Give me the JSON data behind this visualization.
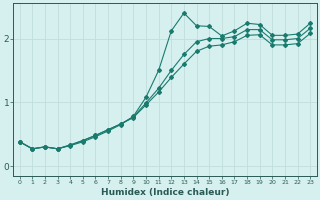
{
  "xlabel": "Humidex (Indice chaleur)",
  "bg_color": "#d6f0ef",
  "grid_color": "#c0dedd",
  "line_color": "#1a7a6e",
  "xlim": [
    -0.5,
    23.5
  ],
  "ylim": [
    -0.15,
    2.55
  ],
  "xticks": [
    0,
    1,
    2,
    3,
    4,
    5,
    6,
    7,
    8,
    9,
    10,
    11,
    12,
    13,
    14,
    15,
    16,
    17,
    18,
    19,
    20,
    21,
    22,
    23
  ],
  "yticks": [
    0,
    1,
    2
  ],
  "line1_x": [
    0,
    1,
    2,
    3,
    4,
    5,
    6,
    7,
    8,
    9,
    10,
    11,
    12,
    13,
    14,
    15,
    16,
    17,
    18,
    19,
    20,
    21,
    22,
    23
  ],
  "line1_y": [
    0.38,
    0.27,
    0.3,
    0.27,
    0.32,
    0.38,
    0.46,
    0.55,
    0.65,
    0.78,
    1.08,
    1.5,
    2.12,
    2.4,
    2.2,
    2.19,
    2.04,
    2.12,
    2.24,
    2.22,
    2.05,
    2.05,
    2.07,
    2.24
  ],
  "line2_x": [
    0,
    1,
    2,
    3,
    4,
    5,
    6,
    7,
    8,
    9,
    10,
    11,
    12,
    13,
    14,
    15,
    16,
    17,
    18,
    19,
    20,
    21,
    22,
    23
  ],
  "line2_y": [
    0.38,
    0.27,
    0.3,
    0.27,
    0.33,
    0.4,
    0.48,
    0.57,
    0.66,
    0.77,
    0.99,
    1.22,
    1.5,
    1.75,
    1.95,
    2.0,
    2.0,
    2.03,
    2.14,
    2.14,
    1.98,
    1.98,
    2.0,
    2.16
  ],
  "line3_x": [
    0,
    1,
    2,
    3,
    4,
    5,
    6,
    7,
    8,
    9,
    10,
    11,
    12,
    13,
    14,
    15,
    16,
    17,
    18,
    19,
    20,
    21,
    22,
    23
  ],
  "line3_y": [
    0.38,
    0.27,
    0.3,
    0.27,
    0.33,
    0.4,
    0.48,
    0.57,
    0.66,
    0.76,
    0.96,
    1.16,
    1.39,
    1.6,
    1.8,
    1.88,
    1.9,
    1.95,
    2.05,
    2.06,
    1.9,
    1.9,
    1.92,
    2.08
  ]
}
